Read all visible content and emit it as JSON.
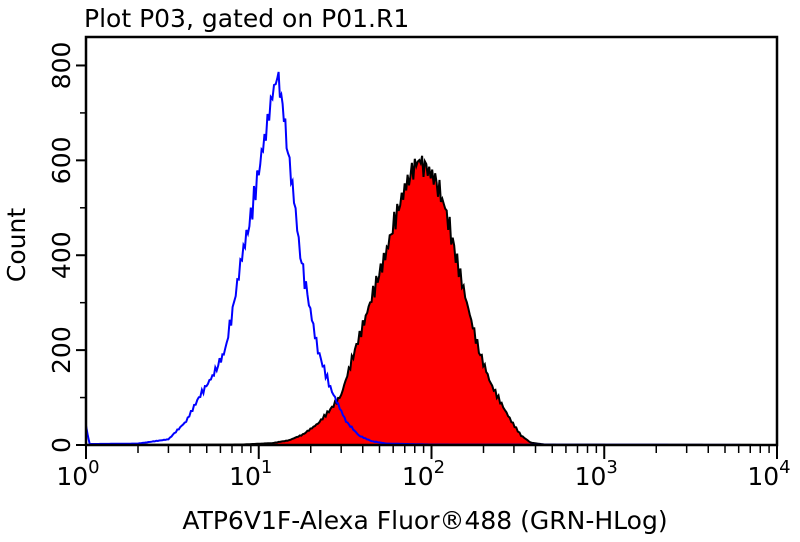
{
  "chart_data": {
    "type": "area",
    "title": "Plot P03, gated on P01.R1",
    "xlabel": "ATP6V1F-Alexa Fluor®488 (GRN-HLog)",
    "ylabel": "Count",
    "xscale": "log",
    "xlim": [
      1,
      10000
    ],
    "ylim": [
      0,
      860
    ],
    "xticks": [
      {
        "base": "10",
        "exp": "0",
        "value": 1
      },
      {
        "base": "10",
        "exp": "1",
        "value": 10
      },
      {
        "base": "10",
        "exp": "2",
        "value": 100
      },
      {
        "base": "10",
        "exp": "3",
        "value": 1000
      },
      {
        "base": "10",
        "exp": "4",
        "value": 10000
      }
    ],
    "yticks": [
      "0",
      "200",
      "400",
      "600",
      "800"
    ],
    "grid": false,
    "series": [
      {
        "style": "outline",
        "color": "#0000ff",
        "x": [
          1,
          1.05,
          2,
          3,
          3.8,
          4.5,
          5.5,
          6.4,
          7.2,
          8,
          9,
          10,
          11,
          12,
          12.8,
          13.5,
          14.5,
          16,
          17.4,
          19.5,
          22,
          26,
          32,
          38,
          45,
          55,
          100,
          10000
        ],
        "y": [
          40,
          2,
          3,
          12,
          50,
          100,
          150,
          200,
          300,
          400,
          480,
          580,
          660,
          740,
          775,
          740,
          640,
          520,
          400,
          300,
          200,
          120,
          50,
          20,
          8,
          3,
          1,
          0
        ]
      },
      {
        "style": "filled",
        "color": "#ff0000",
        "outline": "#000000",
        "x": [
          1,
          8,
          12,
          15,
          18,
          22,
          26,
          30,
          36,
          40,
          45,
          54,
          62,
          70,
          80,
          85,
          95,
          105,
          120,
          138,
          160,
          188,
          220,
          260,
          290,
          330,
          375,
          450,
          10000
        ],
        "y": [
          0,
          1,
          4,
          10,
          22,
          45,
          75,
          105,
          200,
          250,
          310,
          400,
          480,
          540,
          590,
          600,
          580,
          560,
          500,
          400,
          300,
          200,
          130,
          80,
          50,
          20,
          5,
          1,
          0
        ]
      }
    ]
  }
}
